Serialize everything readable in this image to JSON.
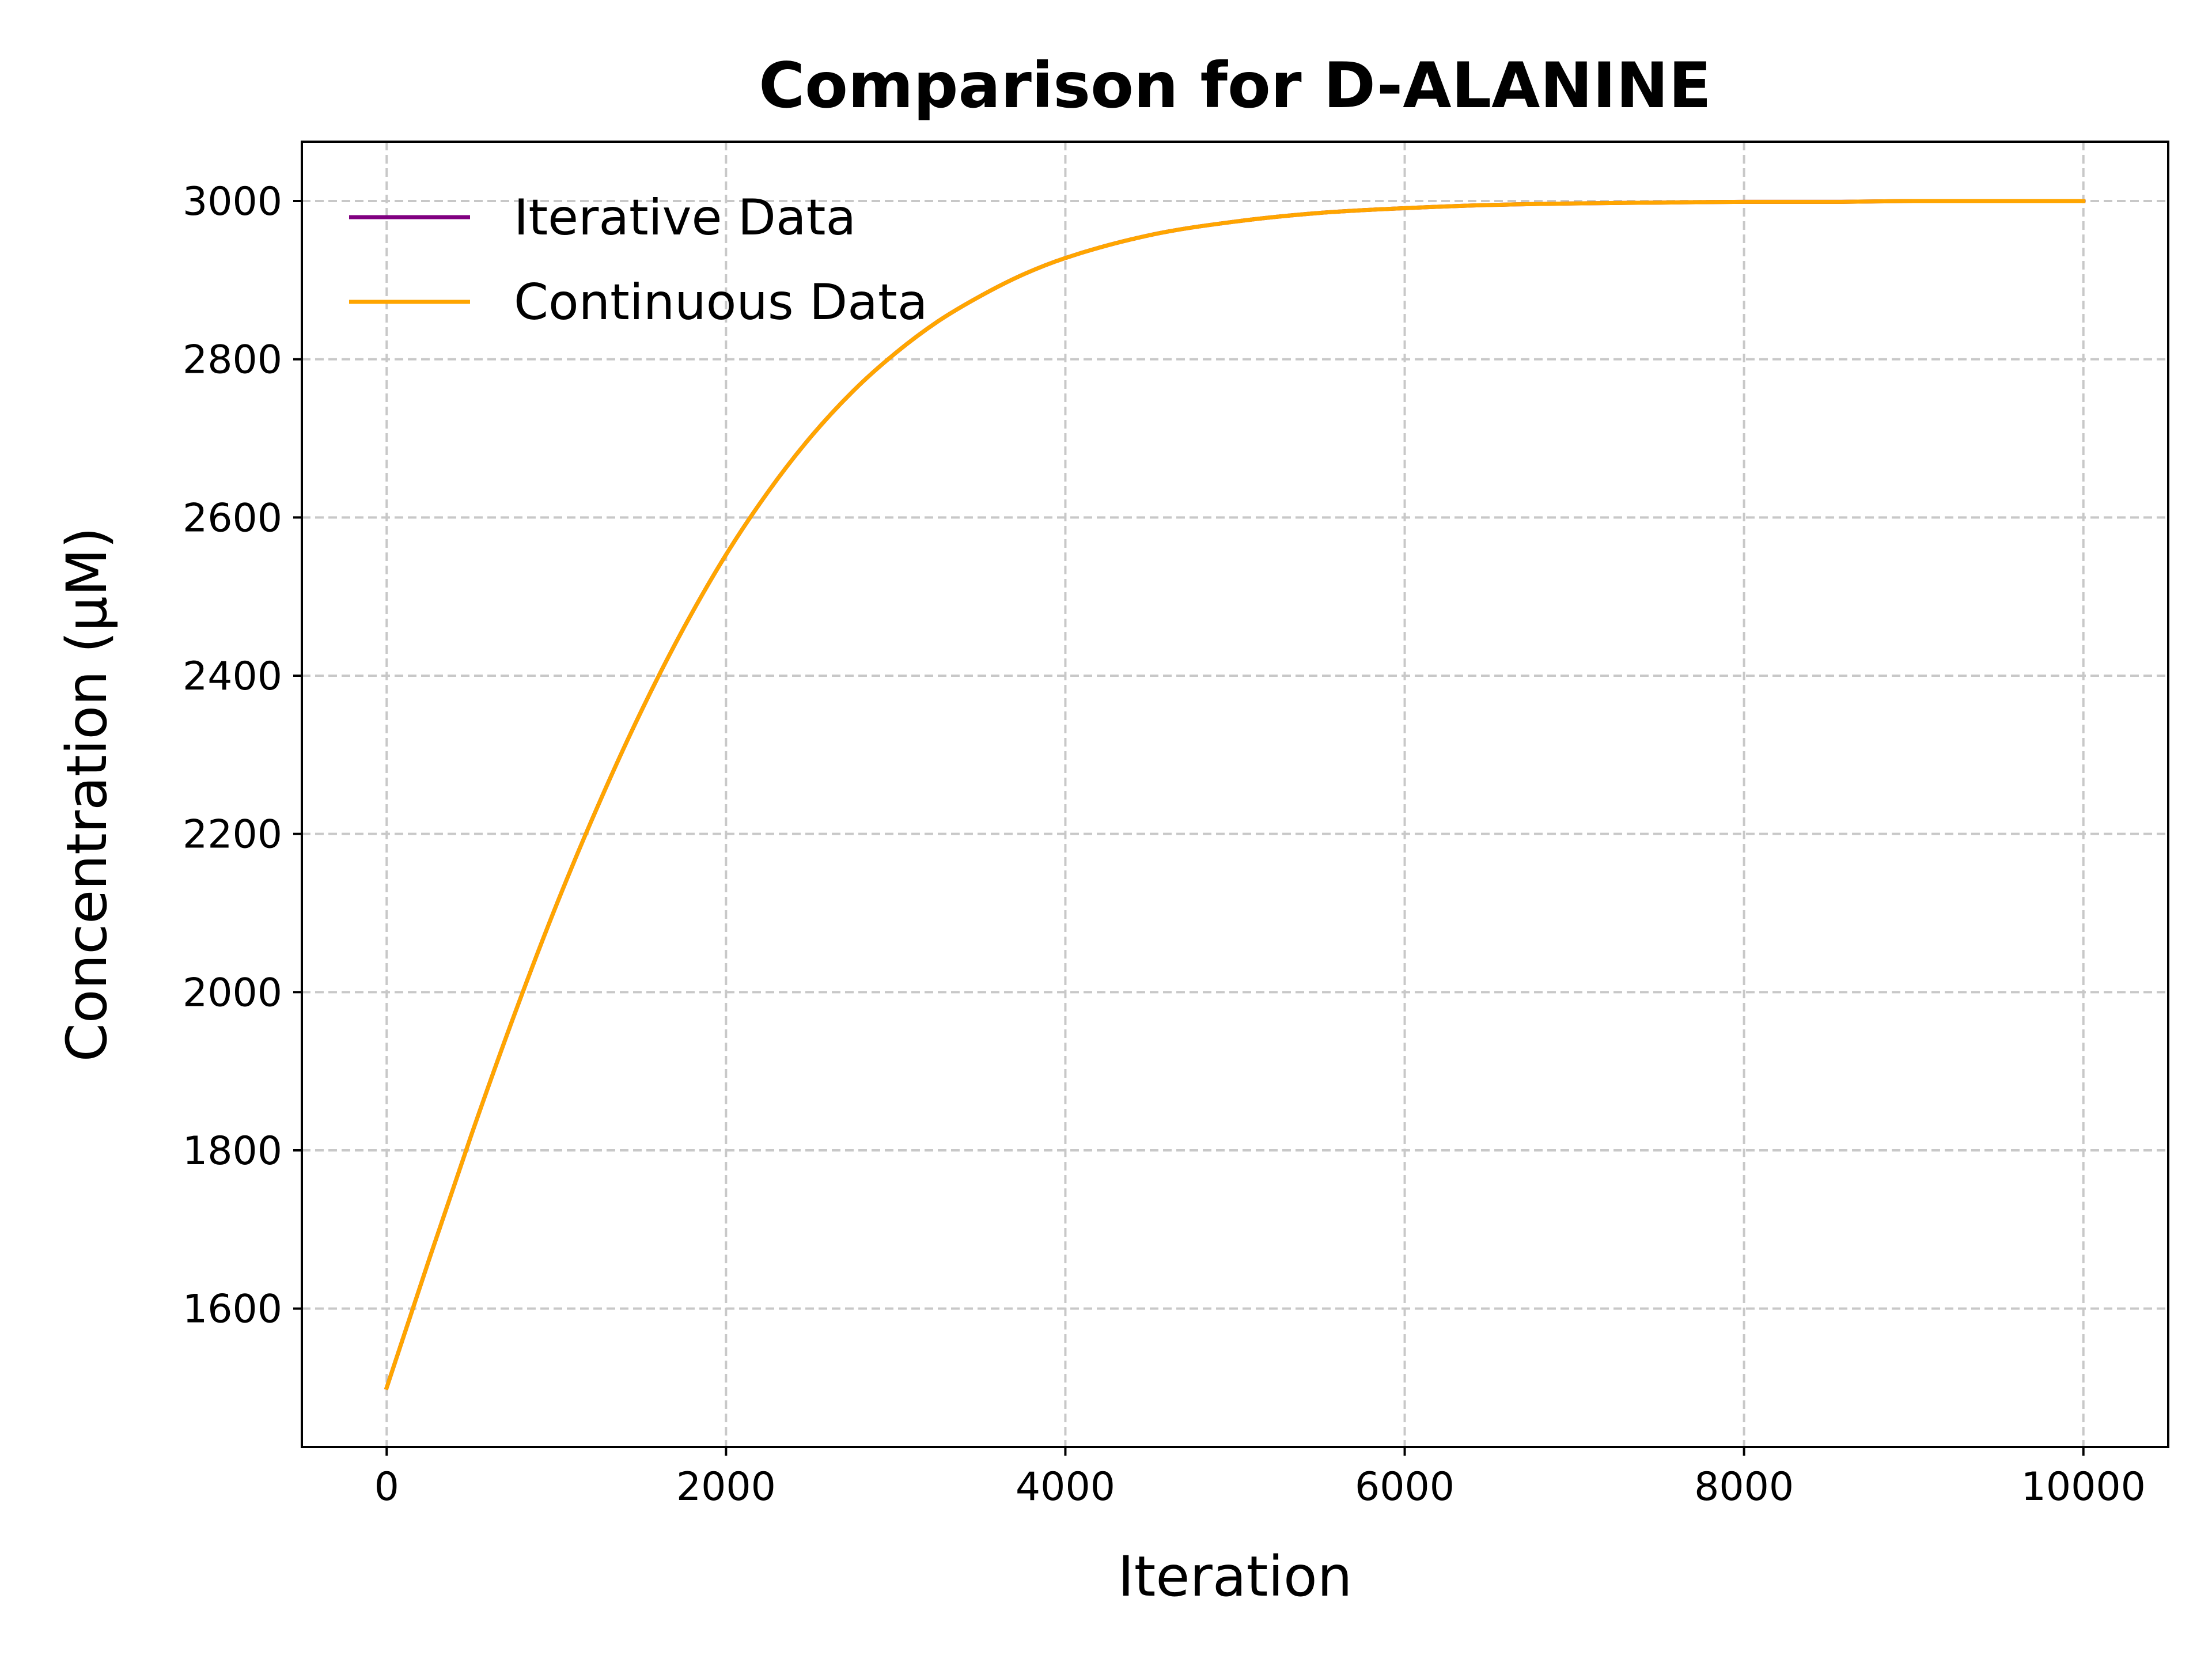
{
  "chart_data": {
    "type": "line",
    "title": "Comparison for D-ALANINE",
    "xlabel": "Iteration",
    "ylabel": "Concentration (μM)",
    "xlim": [
      -500,
      10500
    ],
    "ylim": [
      1425,
      3075
    ],
    "xticks": [
      0,
      2000,
      4000,
      6000,
      8000,
      10000
    ],
    "yticks": [
      1600,
      1800,
      2000,
      2200,
      2400,
      2600,
      2800,
      3000
    ],
    "xtick_labels": [
      "0",
      "2000",
      "4000",
      "6000",
      "8000",
      "10000"
    ],
    "ytick_labels": [
      "1600",
      "1800",
      "2000",
      "2200",
      "2400",
      "2600",
      "2800",
      "3000"
    ],
    "grid": true,
    "legend_position": "top-left",
    "series": [
      {
        "name": "Iterative Data",
        "color": "#800080",
        "x": [
          0,
          250,
          500,
          750,
          1000,
          1250,
          1500,
          1750,
          2000,
          2250,
          2500,
          2750,
          3000,
          3250,
          3500,
          3750,
          4000,
          4500,
          5000,
          5500,
          6000,
          6500,
          7000,
          7500,
          8000,
          8500,
          9000,
          9500,
          10000
        ],
        "y": [
          1500,
          1662,
          1820,
          1970,
          2110,
          2238,
          2355,
          2460,
          2553,
          2633,
          2702,
          2760,
          2808,
          2848,
          2880,
          2907,
          2928,
          2957,
          2974,
          2985,
          2991,
          2995,
          2997,
          2998,
          2999,
          2999,
          3000,
          3000,
          3000
        ]
      },
      {
        "name": "Continuous Data",
        "color": "#FFA500",
        "x": [
          0,
          250,
          500,
          750,
          1000,
          1250,
          1500,
          1750,
          2000,
          2250,
          2500,
          2750,
          3000,
          3250,
          3500,
          3750,
          4000,
          4500,
          5000,
          5500,
          6000,
          6500,
          7000,
          7500,
          8000,
          8500,
          9000,
          9500,
          10000
        ],
        "y": [
          1500,
          1662,
          1820,
          1970,
          2110,
          2238,
          2355,
          2460,
          2553,
          2633,
          2702,
          2760,
          2808,
          2848,
          2880,
          2907,
          2928,
          2957,
          2974,
          2985,
          2991,
          2995,
          2997,
          2998,
          2999,
          2999,
          3000,
          3000,
          3000
        ]
      }
    ]
  }
}
